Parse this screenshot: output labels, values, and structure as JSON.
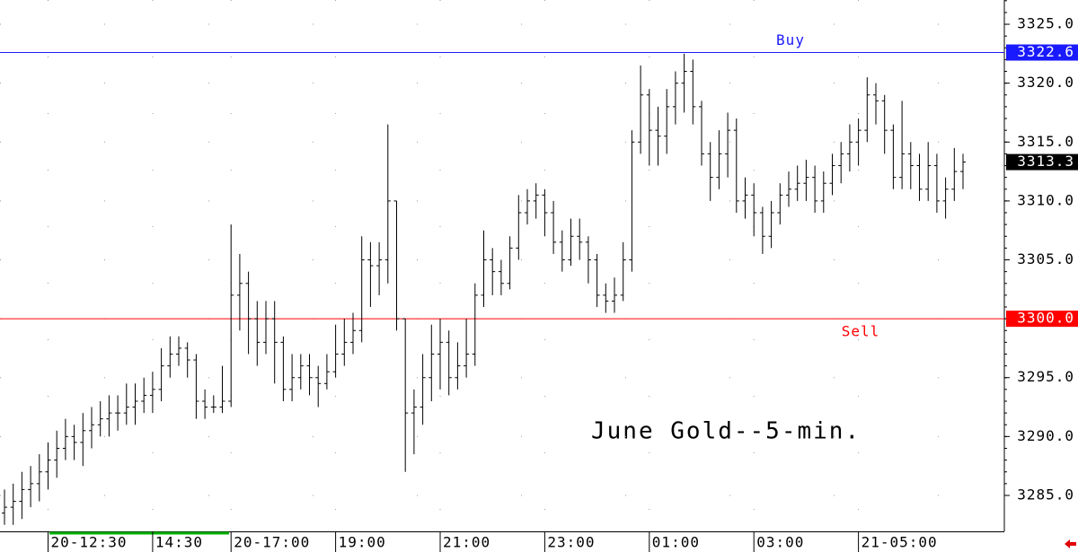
{
  "chart_data": {
    "type": "ohlc",
    "title": "June Gold--5-min.",
    "color": "#000000",
    "categories": [
      null,
      null,
      null,
      null,
      null,
      "20-12:30",
      null,
      null,
      null,
      null,
      null,
      null,
      null,
      null,
      null,
      null,
      null,
      "14:30",
      null,
      null,
      null,
      null,
      null,
      null,
      null,
      null,
      "20-17:00",
      null,
      null,
      null,
      null,
      null,
      null,
      null,
      null,
      null,
      null,
      null,
      "19:00",
      null,
      null,
      null,
      null,
      null,
      null,
      null,
      null,
      null,
      null,
      null,
      "21:00",
      null,
      null,
      null,
      null,
      null,
      null,
      null,
      null,
      null,
      null,
      null,
      "23:00",
      null,
      null,
      null,
      null,
      null,
      null,
      null,
      null,
      null,
      null,
      null,
      "01:00",
      null,
      null,
      null,
      null,
      null,
      null,
      null,
      null,
      null,
      null,
      null,
      "03:00",
      null,
      null,
      null,
      null,
      null,
      null,
      null,
      null,
      null,
      null,
      null,
      "21-05:00",
      null,
      null,
      null,
      null,
      null,
      null,
      null,
      null,
      null,
      null,
      null,
      null
    ],
    "open": [
      3283.5,
      3284,
      3284.5,
      3285.5,
      3286,
      3287,
      3288,
      3289,
      3290,
      3289.5,
      3290.5,
      3291,
      3291.5,
      3292,
      3292,
      3292.5,
      3293,
      3293.5,
      3294,
      3296,
      3297,
      3297.5,
      3296.5,
      3293,
      3292.5,
      3292.5,
      3293,
      3302,
      3303,
      3300,
      3298,
      3300,
      3298,
      3294,
      3295,
      3296,
      3295,
      3294.5,
      3295.5,
      3297,
      3298,
      3299,
      3305,
      3304.5,
      3305,
      3310,
      3300,
      3292,
      3292.5,
      3295,
      3297,
      3298,
      3295,
      3296,
      3297,
      3302,
      3305,
      3304,
      3303,
      3306,
      3309,
      3310,
      3310.5,
      3309,
      3306.5,
      3305,
      3307,
      3306.5,
      3305,
      3302,
      3301.5,
      3302,
      3305,
      3315,
      3319,
      3316,
      3315.5,
      3318,
      3320,
      3321,
      3318,
      3314,
      3312,
      3314,
      3316,
      3310,
      3310.5,
      3309,
      3307,
      3309,
      3310.5,
      3311,
      3311.5,
      3312,
      3310,
      3311.5,
      3313,
      3314,
      3315,
      3316,
      3319,
      3318.5,
      3316,
      3312,
      3314,
      3313,
      3311,
      3313,
      3310,
      3311,
      3312.5
    ],
    "high": [
      3285.5,
      3286,
      3287,
      3287.5,
      3288.5,
      3289.5,
      3290.5,
      3291.5,
      3291,
      3292,
      3292.5,
      3293,
      3293.5,
      3293.5,
      3294.5,
      3294.5,
      3295,
      3295.5,
      3297.5,
      3298.5,
      3298.5,
      3298,
      3297,
      3294,
      3293.5,
      3296,
      3308,
      3305.5,
      3304,
      3301.5,
      3301.5,
      3301.5,
      3298.5,
      3297,
      3297,
      3297,
      3296,
      3297,
      3299.5,
      3300,
      3300.5,
      3307,
      3306.5,
      3306.5,
      3316.5,
      3310,
      3300,
      3294,
      3297,
      3299.5,
      3300,
      3299,
      3298,
      3300,
      3303,
      3307.5,
      3306,
      3305,
      3307,
      3310.5,
      3311,
      3311.5,
      3311,
      3310,
      3307.5,
      3308.5,
      3308.5,
      3307,
      3305.5,
      3303,
      3303.5,
      3306.5,
      3316,
      3321.5,
      3319.5,
      3318,
      3319.5,
      3321,
      3322.5,
      3322,
      3318.5,
      3315,
      3316,
      3317.5,
      3317,
      3312,
      3311.5,
      3309.5,
      3310,
      3311.5,
      3312.5,
      3313,
      3313.5,
      3313,
      3312.5,
      3314,
      3315,
      3316.5,
      3317,
      3320.5,
      3320,
      3319,
      3316.5,
      3318.5,
      3315,
      3314,
      3315,
      3314,
      3312,
      3314.5,
      3314
    ],
    "low": [
      3282.5,
      3282.5,
      3283,
      3284,
      3284.5,
      3285.5,
      3286.5,
      3288,
      3288,
      3287.5,
      3289,
      3290,
      3290,
      3290.5,
      3291,
      3291,
      3292,
      3292,
      3293,
      3295,
      3296,
      3295,
      3291.5,
      3291.5,
      3292,
      3292,
      3292.5,
      3299,
      3297,
      3296,
      3297,
      3294.5,
      3293,
      3293,
      3294,
      3293.5,
      3292.5,
      3294,
      3295,
      3296,
      3297,
      3298,
      3301,
      3302,
      3303,
      3299,
      3287,
      3288.5,
      3291,
      3293,
      3294,
      3293.5,
      3294,
      3295,
      3296,
      3301,
      3302,
      3302,
      3302.5,
      3305,
      3308,
      3308.5,
      3307,
      3305.5,
      3304,
      3304.5,
      3305,
      3303,
      3301,
      3300.5,
      3300.5,
      3301.5,
      3304,
      3314,
      3313,
      3313,
      3314,
      3316.5,
      3317.5,
      3316.5,
      3313,
      3310,
      3311,
      3312,
      3309,
      3308.5,
      3307,
      3305.5,
      3306,
      3308,
      3309.5,
      3310,
      3310,
      3309,
      3309,
      3310.5,
      3311.5,
      3312.5,
      3313,
      3315,
      3316.5,
      3314,
      3311,
      3311,
      3311,
      3310,
      3310,
      3309,
      3308.5,
      3310,
      3311
    ],
    "close": [
      3284,
      3284.5,
      3285.5,
      3286,
      3287,
      3288,
      3289,
      3290,
      3289.5,
      3290.5,
      3291,
      3291.5,
      3292,
      3292,
      3292.5,
      3293,
      3293.5,
      3294,
      3296,
      3297,
      3297.5,
      3296.5,
      3293,
      3292.5,
      3292.5,
      3293,
      3302,
      3303,
      3300,
      3298,
      3300,
      3298,
      3294,
      3295,
      3296,
      3295,
      3294.5,
      3295.5,
      3297,
      3298,
      3299,
      3305,
      3304.5,
      3305,
      3310,
      3300,
      3292,
      3292.5,
      3295,
      3297,
      3298,
      3295,
      3296,
      3297,
      3302,
      3305,
      3304,
      3303,
      3306,
      3309,
      3310,
      3310.5,
      3309,
      3306.5,
      3305,
      3307,
      3306.5,
      3305,
      3302,
      3301.5,
      3302,
      3305,
      3315,
      3319,
      3316,
      3315.5,
      3318,
      3320,
      3321,
      3318,
      3314,
      3312,
      3314,
      3316,
      3310,
      3310.5,
      3309,
      3307,
      3309,
      3310.5,
      3311,
      3311.5,
      3312,
      3310,
      3311.5,
      3313,
      3314,
      3315,
      3316,
      3319,
      3318.5,
      3316,
      3312,
      3314,
      3313,
      3311,
      3313,
      3310,
      3311,
      3312.5,
      3313.3
    ],
    "last_label": "3313.3",
    "ylim": [
      3281.95,
      3327.06
    ],
    "yticks": [
      {
        "value": 3285,
        "label": "3285.0"
      },
      {
        "value": 3290,
        "label": "3290.0"
      },
      {
        "value": 3295,
        "label": "3295.0"
      },
      {
        "value": 3300,
        "label": "3300.0"
      },
      {
        "value": 3305,
        "label": "3305.0"
      },
      {
        "value": 3310,
        "label": "3310.0"
      },
      {
        "value": 3315,
        "label": "3315.0"
      },
      {
        "value": 3320,
        "label": "3320.0"
      },
      {
        "value": 3325,
        "label": "3325.0"
      }
    ],
    "grid": true,
    "hlines": [
      {
        "name": "Buy",
        "value": 3322.6,
        "value_label": "3322.6",
        "color": "#1a1aff"
      },
      {
        "name": "Sell",
        "value": 3300,
        "value_label": "3300.0",
        "color": "#ff0000"
      }
    ]
  }
}
